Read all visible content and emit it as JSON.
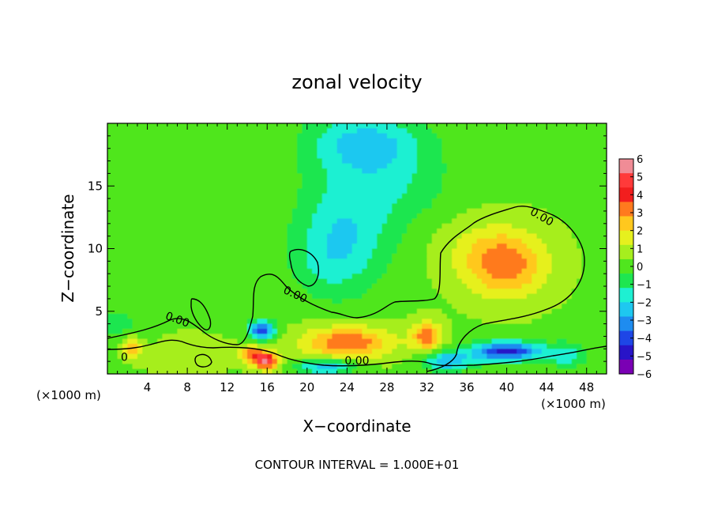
{
  "chart_data": {
    "type": "heatmap",
    "title": "zonal velocity",
    "xlabel": "X−coordinate",
    "ylabel": "Z−coordinate",
    "x_unit_left": "(×1000 m)",
    "x_unit_right": "(×1000 m)",
    "footer": "CONTOUR INTERVAL = 1.000E+01",
    "xlim": [
      0,
      50
    ],
    "ylim": [
      0,
      20
    ],
    "x_ticks": [
      4,
      8,
      12,
      16,
      20,
      24,
      28,
      32,
      36,
      40,
      44,
      48
    ],
    "x_tick_labels": [
      "4",
      "8",
      "12",
      "16",
      "20",
      "24",
      "28",
      "32",
      "36",
      "40",
      "44",
      "48"
    ],
    "y_ticks": [
      5,
      10,
      15
    ],
    "y_tick_labels": [
      "5",
      "10",
      "15"
    ],
    "contour_labels": [
      {
        "text": "0.00",
        "x": 43.5,
        "y": 12.5,
        "angle": 30
      },
      {
        "text": "0.00",
        "x": 18.8,
        "y": 6.3,
        "angle": 25
      },
      {
        "text": "0.00",
        "x": 7.0,
        "y": 4.3,
        "angle": 20
      },
      {
        "text": "0.00",
        "x": 25.0,
        "y": 1.0,
        "angle": 0
      },
      {
        "text": "0",
        "x": 1.7,
        "y": 1.3,
        "angle": 0
      }
    ],
    "colorbar": {
      "levels": [
        -6,
        -5,
        -4,
        -3,
        -2,
        -1,
        0,
        1,
        2,
        3,
        4,
        5,
        6
      ],
      "labels": [
        "6",
        "5",
        "4",
        "3",
        "2",
        "1",
        "0",
        "−1",
        "−2",
        "−3",
        "−4",
        "−5",
        "−6"
      ],
      "colors": [
        "#f08c96",
        "#ff3a3a",
        "#f21e1e",
        "#ff7a1e",
        "#ffc81e",
        "#e6f01e",
        "#a6ee1e",
        "#50e61e",
        "#1ee650",
        "#1ef0d2",
        "#1ec8f0",
        "#1e8cf0",
        "#1e46e6",
        "#2814c8",
        "#7a00b4"
      ]
    },
    "field": {
      "background": 0.3,
      "features": [
        {
          "x": 26,
          "z": 18.5,
          "sx": 6,
          "sz": 2.5,
          "amp": -2.4
        },
        {
          "x": 24,
          "z": 12,
          "sx": 5,
          "sz": 5,
          "amp": -2.0
        },
        {
          "x": 22,
          "z": 9,
          "sx": 4,
          "sz": 3,
          "amp": -1.0
        },
        {
          "x": 30,
          "z": 15,
          "sx": 5,
          "sz": 3,
          "amp": -1.0
        },
        {
          "x": 40,
          "z": 8.5,
          "sx": 4,
          "sz": 2.5,
          "amp": 2.6
        },
        {
          "x": 38,
          "z": 10,
          "sx": 5,
          "sz": 2.5,
          "amp": 1.0
        },
        {
          "x": 24,
          "z": 2.5,
          "sx": 4.5,
          "sz": 1.3,
          "amp": 3.3
        },
        {
          "x": 32,
          "z": 3,
          "sx": 1.5,
          "sz": 1.2,
          "amp": 3.0
        },
        {
          "x": 15.5,
          "z": 3.5,
          "sx": 1.3,
          "sz": 0.8,
          "amp": -4.5
        },
        {
          "x": 16,
          "z": 1,
          "sx": 1.2,
          "sz": 0.7,
          "amp": 4.5
        },
        {
          "x": 14.5,
          "z": 1.5,
          "sx": 1.2,
          "sz": 0.7,
          "amp": 3.0
        },
        {
          "x": 40,
          "z": 1.8,
          "sx": 3.5,
          "sz": 0.8,
          "amp": -5.0
        },
        {
          "x": 34,
          "z": 1.0,
          "sx": 2.5,
          "sz": 0.8,
          "amp": -3.0
        },
        {
          "x": 22,
          "z": 0.6,
          "sx": 3,
          "sz": 0.6,
          "amp": -3.0
        },
        {
          "x": 2.5,
          "z": 2.1,
          "sx": 1,
          "sz": 0.8,
          "amp": 2.5
        },
        {
          "x": 1,
          "z": 4,
          "sx": 3,
          "sz": 2,
          "amp": -0.9
        },
        {
          "x": 46,
          "z": 1.5,
          "sx": 2,
          "sz": 1,
          "amp": -2.0
        },
        {
          "x": 8,
          "z": 1.5,
          "sx": 4,
          "sz": 1.5,
          "amp": 0.6
        }
      ]
    }
  }
}
